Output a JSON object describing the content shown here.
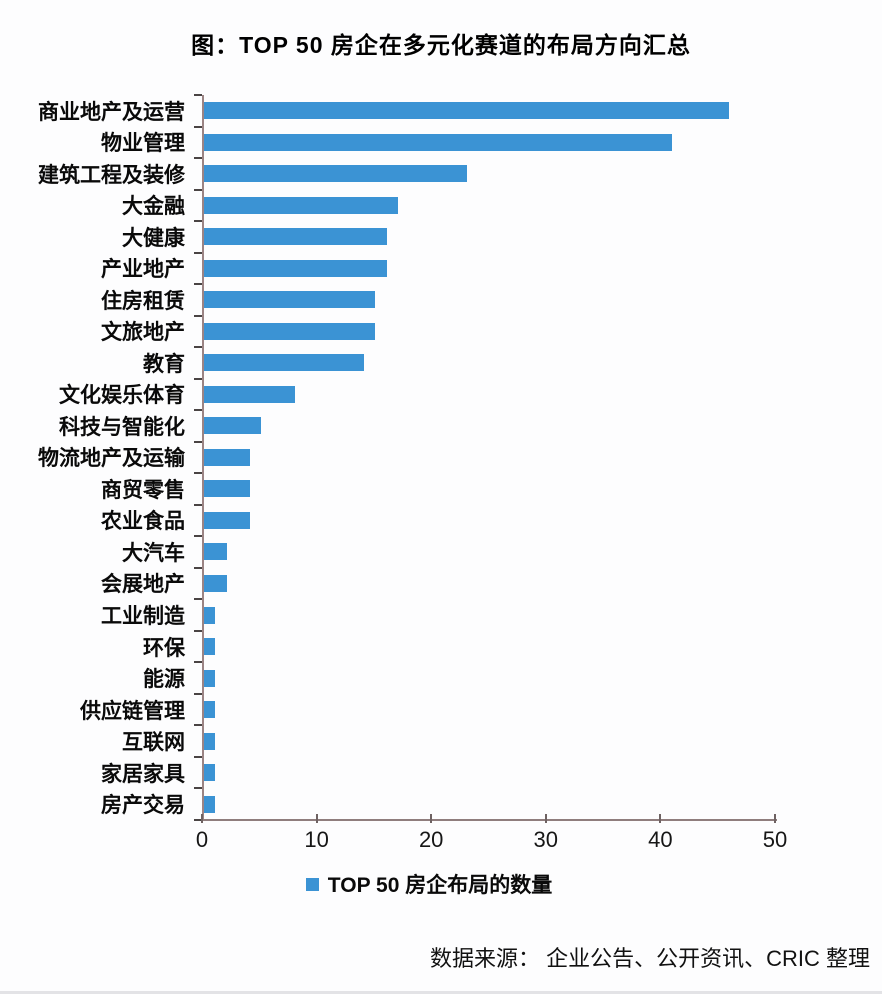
{
  "title": "图：TOP 50 房企在多元化赛道的布局方向汇总",
  "chart_data": {
    "type": "bar",
    "orientation": "horizontal",
    "title": "图：TOP 50 房企在多元化赛道的布局方向汇总",
    "categories": [
      "商业地产及运营",
      "物业管理",
      "建筑工程及装修",
      "大金融",
      "大健康",
      "产业地产",
      "住房租赁",
      "文旅地产",
      "教育",
      "文化娱乐体育",
      "科技与智能化",
      "物流地产及运输",
      "商贸零售",
      "农业食品",
      "大汽车",
      "会展地产",
      "工业制造",
      "环保",
      "能源",
      "供应链管理",
      "互联网",
      "家居家具",
      "房产交易"
    ],
    "values": [
      46,
      41,
      23,
      17,
      16,
      16,
      15,
      15,
      14,
      8,
      5,
      4,
      4,
      4,
      2,
      2,
      1,
      1,
      1,
      1,
      1,
      1,
      1
    ],
    "xlim": [
      0,
      50
    ],
    "x_ticks": [
      0,
      10,
      20,
      30,
      40,
      50
    ],
    "grid": false,
    "legend_position": "bottom",
    "bar_color": "#3B93D4",
    "series_name": "TOP 50 房企布局的数量"
  },
  "legend": {
    "label": "TOP 50 房企布局的数量",
    "swatch_icon": "legend-square-swatch",
    "swatch_color": "#3B93D4"
  },
  "source": "数据来源： 企业公告、公开资讯、CRIC 整理",
  "colors": {
    "bar": "#3B93D4",
    "axis": "#8f7d7d",
    "tick": "#4a4444",
    "background": "#fdfdfe",
    "text": "#111111"
  }
}
